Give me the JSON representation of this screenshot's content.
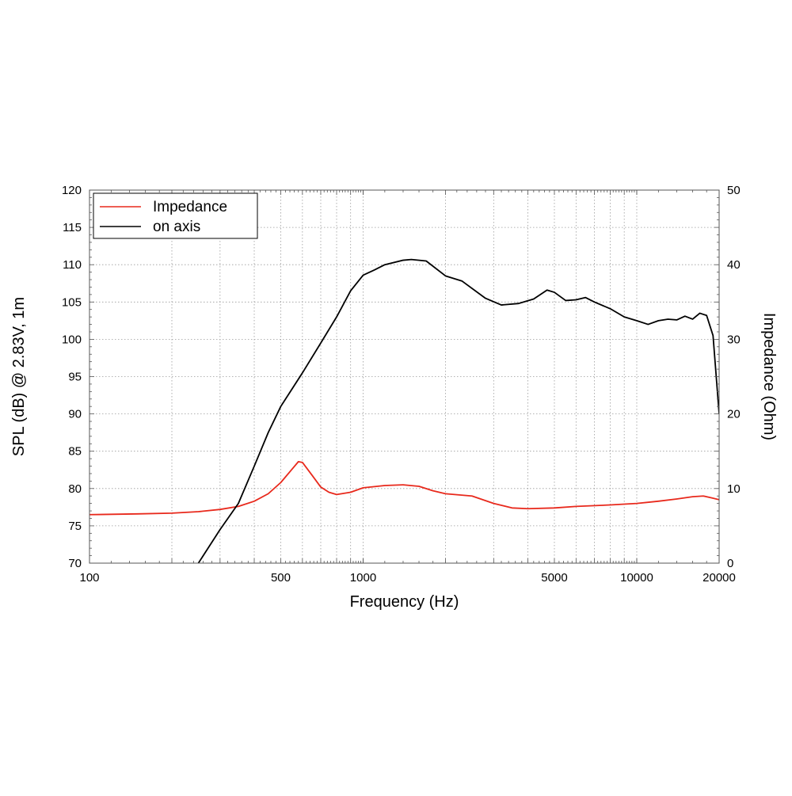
{
  "chart_data": {
    "type": "line",
    "xscale": "log",
    "xlim": [
      100,
      20000
    ],
    "xlabel": "Frequency (Hz)",
    "ylabel_left": "SPL (dB) @ 2.83V, 1m",
    "ylabel_right": "Impedance (Ohm)",
    "ylim_left": [
      70,
      120
    ],
    "ylim_right": [
      0,
      50
    ],
    "x_tick_labels": [
      "100",
      "500",
      "1000",
      "5000",
      "10000",
      "20000"
    ],
    "x_tick_values": [
      100,
      500,
      1000,
      5000,
      10000,
      20000
    ],
    "y_left_ticks": [
      "70",
      "75",
      "80",
      "85",
      "90",
      "95",
      "100",
      "105",
      "110",
      "115",
      "120"
    ],
    "y_right_ticks": [
      "0",
      "10",
      "20",
      "30",
      "40",
      "50"
    ],
    "grid": true,
    "legend_position": "top-left",
    "series": [
      {
        "name": "Impedance",
        "axis": "right",
        "color": "#e8291c",
        "points": [
          [
            100,
            6.5
          ],
          [
            150,
            6.6
          ],
          [
            200,
            6.7
          ],
          [
            250,
            6.9
          ],
          [
            300,
            7.2
          ],
          [
            350,
            7.6
          ],
          [
            400,
            8.3
          ],
          [
            450,
            9.3
          ],
          [
            500,
            10.8
          ],
          [
            550,
            12.6
          ],
          [
            580,
            13.6
          ],
          [
            600,
            13.5
          ],
          [
            650,
            11.8
          ],
          [
            700,
            10.2
          ],
          [
            750,
            9.5
          ],
          [
            800,
            9.2
          ],
          [
            900,
            9.5
          ],
          [
            1000,
            10.1
          ],
          [
            1200,
            10.4
          ],
          [
            1400,
            10.5
          ],
          [
            1600,
            10.3
          ],
          [
            1800,
            9.7
          ],
          [
            2000,
            9.3
          ],
          [
            2500,
            9.0
          ],
          [
            3000,
            8.0
          ],
          [
            3500,
            7.4
          ],
          [
            4000,
            7.3
          ],
          [
            5000,
            7.4
          ],
          [
            6000,
            7.6
          ],
          [
            8000,
            7.8
          ],
          [
            10000,
            8.0
          ],
          [
            12000,
            8.3
          ],
          [
            14000,
            8.6
          ],
          [
            16000,
            8.9
          ],
          [
            17500,
            9.0
          ],
          [
            19000,
            8.7
          ],
          [
            20000,
            8.5
          ]
        ]
      },
      {
        "name": "on axis",
        "axis": "left",
        "color": "#000000",
        "points": [
          [
            250,
            70
          ],
          [
            300,
            74.5
          ],
          [
            350,
            78
          ],
          [
            400,
            83
          ],
          [
            450,
            87.5
          ],
          [
            500,
            91
          ],
          [
            600,
            95.5
          ],
          [
            700,
            99.5
          ],
          [
            800,
            103
          ],
          [
            900,
            106.5
          ],
          [
            1000,
            108.6
          ],
          [
            1100,
            109.3
          ],
          [
            1200,
            110
          ],
          [
            1400,
            110.6
          ],
          [
            1500,
            110.7
          ],
          [
            1700,
            110.5
          ],
          [
            2000,
            108.5
          ],
          [
            2300,
            107.8
          ],
          [
            2800,
            105.5
          ],
          [
            3200,
            104.6
          ],
          [
            3700,
            104.8
          ],
          [
            4200,
            105.4
          ],
          [
            4700,
            106.6
          ],
          [
            5000,
            106.3
          ],
          [
            5500,
            105.2
          ],
          [
            6000,
            105.3
          ],
          [
            6500,
            105.6
          ],
          [
            7000,
            105
          ],
          [
            8000,
            104.1
          ],
          [
            9000,
            103
          ],
          [
            10000,
            102.5
          ],
          [
            11000,
            102
          ],
          [
            12000,
            102.5
          ],
          [
            13000,
            102.7
          ],
          [
            14000,
            102.6
          ],
          [
            15000,
            103.1
          ],
          [
            16000,
            102.7
          ],
          [
            17000,
            103.5
          ],
          [
            18000,
            103.2
          ],
          [
            19000,
            100.5
          ],
          [
            20000,
            90
          ]
        ]
      }
    ]
  }
}
